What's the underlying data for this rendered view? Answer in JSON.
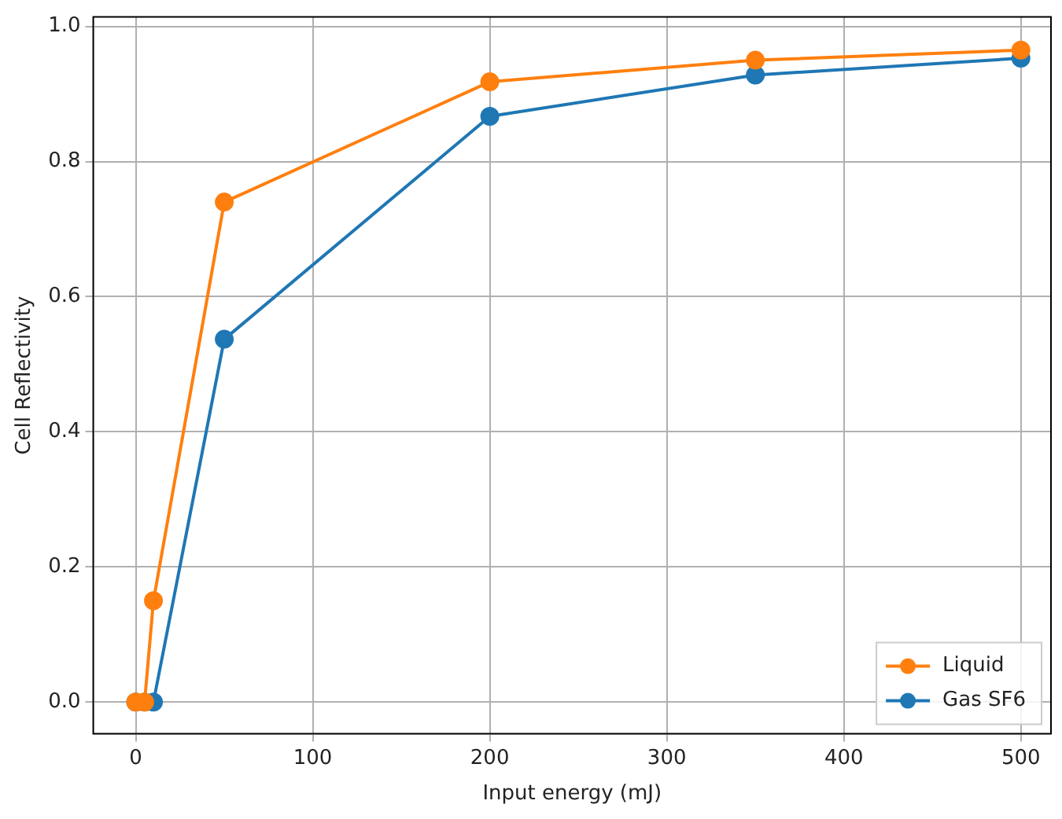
{
  "chart_data": {
    "type": "line",
    "xlabel": "Input energy (mJ)",
    "ylabel": "Cell Reflectivity",
    "x": [
      0,
      5,
      10,
      50,
      200,
      350,
      500
    ],
    "series": [
      {
        "name": "Liquid",
        "color": "#ff7f0e",
        "values": [
          0,
          0,
          0.15,
          0.74,
          0.918,
          0.95,
          0.965
        ]
      },
      {
        "name": "Gas SF6",
        "color": "#1f77b4",
        "values": [
          0,
          0,
          0,
          0.537,
          0.867,
          0.928,
          0.953
        ]
      }
    ],
    "xlim": [
      -24,
      517
    ],
    "xticks": [
      0,
      100,
      200,
      300,
      400,
      500
    ],
    "ylim": [
      -0.047,
      1.014
    ],
    "yticks": [
      {
        "value": 0,
        "label": "0.0"
      },
      0.2,
      0.4,
      0.6,
      0.8,
      {
        "value": 1,
        "label": "1.0"
      }
    ],
    "grid": true,
    "legend": "bottom right",
    "marker": "circle",
    "line_style": "solid"
  }
}
